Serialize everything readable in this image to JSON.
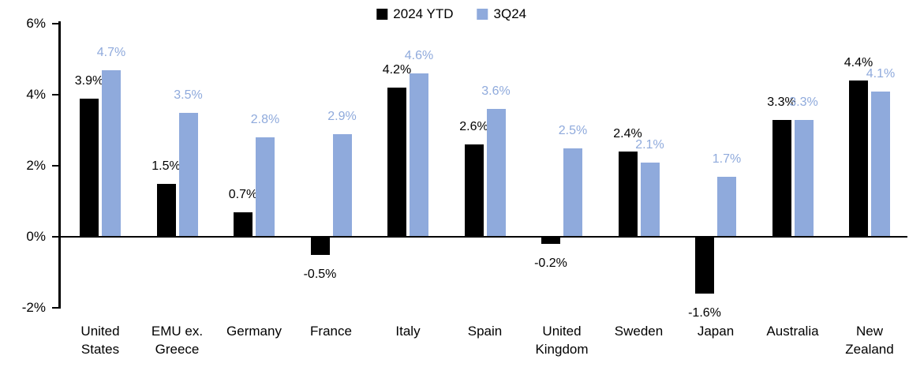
{
  "chart_data": {
    "type": "bar",
    "title": "",
    "xlabel": "",
    "ylabel": "",
    "categories": [
      "United States",
      "EMU ex. Greece",
      "Germany",
      "France",
      "Italy",
      "Spain",
      "United Kingdom",
      "Sweden",
      "Japan",
      "Australia",
      "New Zealand"
    ],
    "category_lines": [
      [
        "United",
        "States"
      ],
      [
        "EMU ex.",
        "Greece"
      ],
      [
        "Germany"
      ],
      [
        "France"
      ],
      [
        "Italy"
      ],
      [
        "Spain"
      ],
      [
        "United",
        "Kingdom"
      ],
      [
        "Sweden"
      ],
      [
        "Japan"
      ],
      [
        "Australia"
      ],
      [
        "New",
        "Zealand"
      ]
    ],
    "series": [
      {
        "name": "2024 YTD",
        "color": "#000000",
        "values": [
          3.9,
          1.5,
          0.7,
          -0.5,
          4.2,
          2.6,
          -0.2,
          2.4,
          -1.6,
          3.3,
          4.4
        ],
        "labels": [
          "3.9%",
          "1.5%",
          "0.7%",
          "-0.5%",
          "4.2%",
          "2.6%",
          "-0.2%",
          "2.4%",
          "-1.6%",
          "3.3%",
          "4.4%"
        ]
      },
      {
        "name": "3Q24",
        "color": "#8FAADC",
        "values": [
          4.7,
          3.5,
          2.8,
          2.9,
          4.6,
          3.6,
          2.5,
          2.1,
          1.7,
          3.3,
          4.1
        ],
        "labels": [
          "4.7%",
          "3.5%",
          "2.8%",
          "2.9%",
          "4.6%",
          "3.6%",
          "2.5%",
          "2.1%",
          "1.7%",
          "3.3%",
          "4.1%"
        ]
      }
    ],
    "ylim": [
      -2,
      6
    ],
    "yticks": [
      {
        "value": -2,
        "label": "-2%"
      },
      {
        "value": 0,
        "label": "0%"
      },
      {
        "value": 2,
        "label": "2%"
      },
      {
        "value": 4,
        "label": "4%"
      },
      {
        "value": 6,
        "label": "6%"
      }
    ],
    "grid": false,
    "legend_position": "top-center",
    "axis_color": "#000000",
    "background_color": "#FFFFFF"
  }
}
